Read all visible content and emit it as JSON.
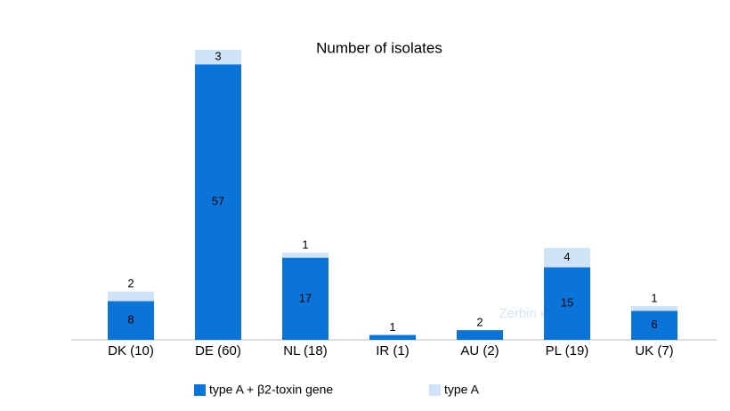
{
  "chart_data": {
    "type": "stacked-bar",
    "title": "Number of isolates",
    "categories": [
      "DK (10)",
      "DE (60)",
      "NL (18)",
      "IR (1)",
      "AU (2)",
      "PL (19)",
      "UK (7)"
    ],
    "series": [
      {
        "name": "type A + β2-toxin gene",
        "color": "#0a74d8",
        "values": [
          8,
          57,
          17,
          1,
          2,
          15,
          6
        ]
      },
      {
        "name": "type A",
        "color": "#cfe3f6",
        "values": [
          2,
          3,
          1,
          null,
          null,
          4,
          1
        ]
      }
    ],
    "ylim": [
      0,
      60
    ],
    "annotation": "Zerbin et al."
  }
}
